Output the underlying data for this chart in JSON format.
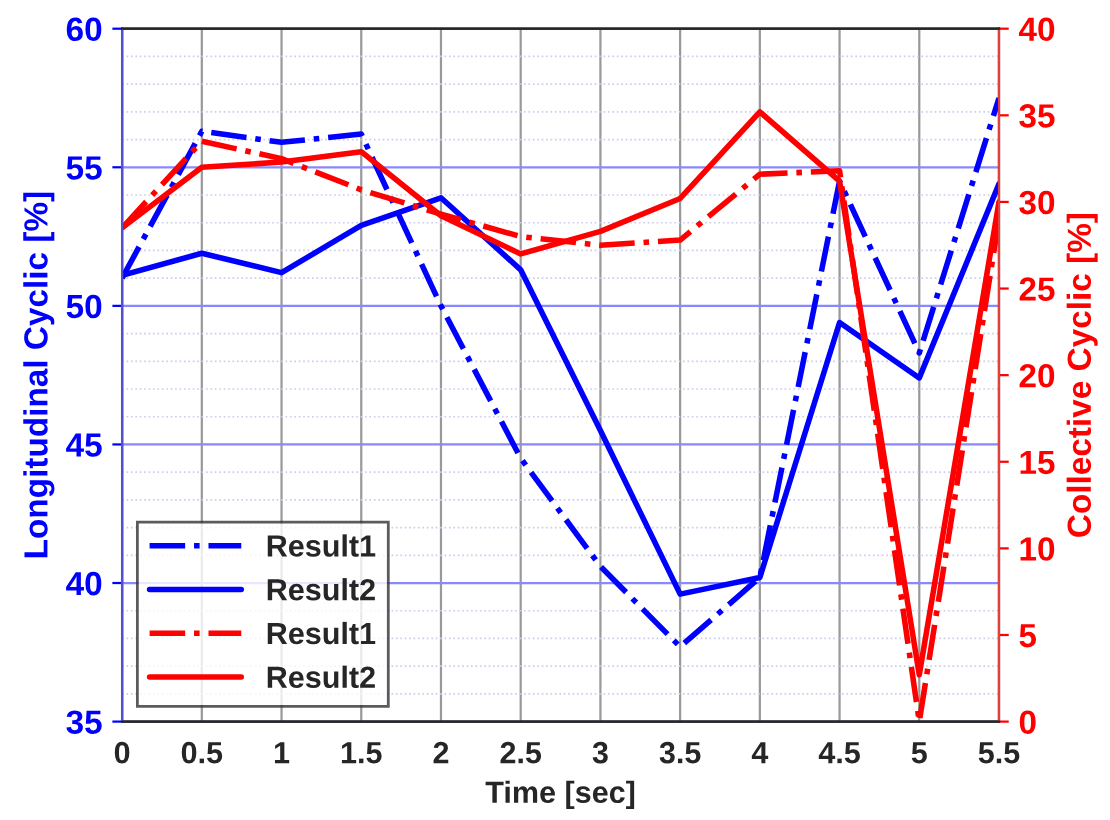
{
  "chart_data": {
    "type": "line",
    "xlabel": "Time [sec]",
    "ylabel": "Longitudinal Cyclic [%]",
    "y2label": "Collective Cyclic [%]",
    "x": [
      0,
      0.5,
      1,
      1.5,
      2,
      2.5,
      3,
      3.5,
      4,
      4.5,
      5,
      5.5
    ],
    "series": [
      {
        "name": "Result1",
        "color": "#0000ff",
        "line_style": "dashed",
        "values": [
          51.0,
          56.3,
          55.9,
          56.2,
          50.0,
          44.5,
          40.6,
          37.7,
          40.2,
          54.5,
          48.3,
          57.5
        ]
      },
      {
        "name": "Result2",
        "color": "#0000ff",
        "line_style": "solid",
        "values": [
          51.1,
          51.9,
          51.2,
          52.9,
          53.9,
          51.3,
          45.5,
          39.6,
          40.2,
          49.4,
          47.4,
          54.4
        ]
      },
      {
        "name": "Result1",
        "color": "#ff0000",
        "line_style": "dashed",
        "axis": "y2",
        "values": [
          28.5,
          33.5,
          32.5,
          30.7,
          29.3,
          28.0,
          27.5,
          27.8,
          31.6,
          31.8,
          0,
          29
        ]
      },
      {
        "name": "Result2",
        "color": "#ff0000",
        "line_style": "solid",
        "axis": "y2",
        "values": [
          28.5,
          32.0,
          32.3,
          32.9,
          29.2,
          27.0,
          28.3,
          30.2,
          35.2,
          31.2,
          2.7,
          30
        ]
      }
    ],
    "xlim": [
      0,
      5.5
    ],
    "xticks": [
      0,
      0.5,
      1,
      1.5,
      2,
      2.5,
      3,
      3.5,
      4,
      4.5,
      5,
      5.5
    ],
    "ylim": [
      35,
      60
    ],
    "yticks": [
      35,
      40,
      45,
      50,
      55,
      60
    ],
    "y2lim": [
      0,
      40
    ],
    "y2ticks": [
      0,
      5,
      10,
      15,
      20,
      25,
      30,
      35,
      40
    ],
    "grid": true,
    "legend": "bottom left",
    "marker": "none"
  }
}
